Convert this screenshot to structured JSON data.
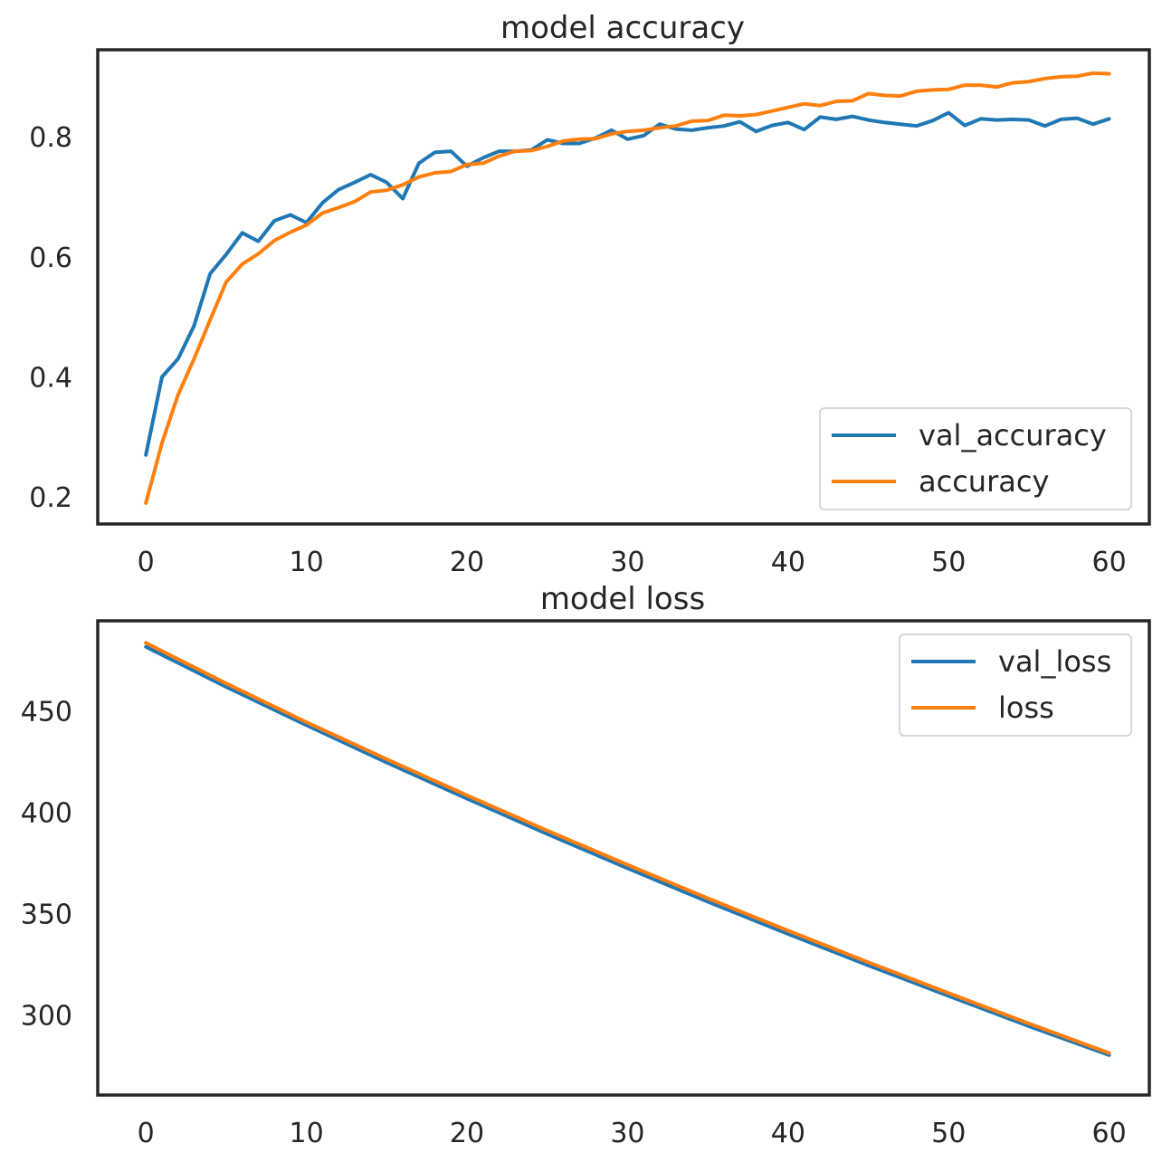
{
  "colors": {
    "val": "#1f77b4",
    "train": "#ff7f0e",
    "frame": "#262626",
    "text": "#262626"
  },
  "chart_data": [
    {
      "type": "line",
      "title": "model accuracy",
      "xlabel": "",
      "ylabel": "",
      "xlim": [
        -3,
        62.5
      ],
      "ylim": [
        0.155,
        0.945
      ],
      "xticks": [
        0,
        10,
        20,
        30,
        40,
        50,
        60
      ],
      "xtick_labels": [
        "0",
        "10",
        "20",
        "30",
        "40",
        "50",
        "60"
      ],
      "yticks": [
        0.2,
        0.4,
        0.6,
        0.8
      ],
      "ytick_labels": [
        "0.2",
        "0.4",
        "0.6",
        "0.8"
      ],
      "grid": false,
      "legend_position": "lower right",
      "series": [
        {
          "name": "val_accuracy",
          "color": "#1f77b4",
          "x": [
            0,
            1,
            2,
            3,
            4,
            5,
            6,
            7,
            8,
            9,
            10,
            11,
            12,
            13,
            14,
            15,
            16,
            17,
            18,
            19,
            20,
            21,
            22,
            23,
            24,
            25,
            26,
            27,
            28,
            29,
            30,
            31,
            32,
            33,
            34,
            35,
            36,
            37,
            38,
            39,
            40,
            41,
            42,
            43,
            44,
            45,
            46,
            47,
            48,
            49,
            50,
            51,
            52,
            53,
            54,
            55,
            56,
            57,
            58,
            59,
            60
          ],
          "values": [
            0.27,
            0.4,
            0.43,
            0.485,
            0.572,
            0.604,
            0.64,
            0.626,
            0.66,
            0.67,
            0.657,
            0.69,
            0.712,
            0.724,
            0.737,
            0.724,
            0.697,
            0.756,
            0.774,
            0.776,
            0.751,
            0.765,
            0.776,
            0.776,
            0.778,
            0.795,
            0.789,
            0.789,
            0.798,
            0.811,
            0.796,
            0.802,
            0.821,
            0.813,
            0.811,
            0.815,
            0.818,
            0.825,
            0.809,
            0.819,
            0.824,
            0.812,
            0.833,
            0.829,
            0.834,
            0.828,
            0.824,
            0.821,
            0.818,
            0.827,
            0.84,
            0.819,
            0.83,
            0.828,
            0.829,
            0.828,
            0.818,
            0.829,
            0.831,
            0.821,
            0.83
          ]
        },
        {
          "name": "accuracy",
          "color": "#ff7f0e",
          "x": [
            0,
            1,
            2,
            3,
            4,
            5,
            6,
            7,
            8,
            9,
            10,
            11,
            12,
            13,
            14,
            15,
            16,
            17,
            18,
            19,
            20,
            21,
            22,
            23,
            24,
            25,
            26,
            27,
            28,
            29,
            30,
            31,
            32,
            33,
            34,
            35,
            36,
            37,
            38,
            39,
            40,
            41,
            42,
            43,
            44,
            45,
            46,
            47,
            48,
            49,
            50,
            51,
            52,
            53,
            54,
            55,
            56,
            57,
            58,
            59,
            60
          ],
          "values": [
            0.19,
            0.29,
            0.37,
            0.43,
            0.495,
            0.558,
            0.588,
            0.605,
            0.627,
            0.641,
            0.653,
            0.673,
            0.682,
            0.692,
            0.708,
            0.711,
            0.72,
            0.733,
            0.74,
            0.742,
            0.754,
            0.756,
            0.768,
            0.776,
            0.777,
            0.784,
            0.793,
            0.796,
            0.797,
            0.805,
            0.809,
            0.811,
            0.815,
            0.818,
            0.826,
            0.827,
            0.836,
            0.835,
            0.837,
            0.843,
            0.849,
            0.855,
            0.852,
            0.859,
            0.86,
            0.872,
            0.869,
            0.868,
            0.876,
            0.878,
            0.879,
            0.886,
            0.886,
            0.883,
            0.89,
            0.892,
            0.897,
            0.9,
            0.901,
            0.906,
            0.905
          ]
        }
      ]
    },
    {
      "type": "line",
      "title": "model loss",
      "xlabel": "",
      "ylabel": "",
      "xlim": [
        -3,
        62.5
      ],
      "ylim": [
        260.5,
        494.5
      ],
      "xticks": [
        0,
        10,
        20,
        30,
        40,
        50,
        60
      ],
      "xtick_labels": [
        "0",
        "10",
        "20",
        "30",
        "40",
        "50",
        "60"
      ],
      "yticks": [
        300,
        350,
        400,
        450
      ],
      "ytick_labels": [
        "300",
        "350",
        "400",
        "450"
      ],
      "grid": false,
      "legend_position": "upper right",
      "series": [
        {
          "name": "val_loss",
          "color": "#1f77b4",
          "x": [
            0,
            5,
            10,
            15,
            20,
            25,
            30,
            35,
            40,
            45,
            50,
            55,
            60
          ],
          "values": [
            481.7,
            461.9,
            443.0,
            424.6,
            406.8,
            389.3,
            372.4,
            355.9,
            340.0,
            324.5,
            309.4,
            294.5,
            280.2
          ]
        },
        {
          "name": "loss",
          "color": "#ff7f0e",
          "x": [
            0,
            5,
            10,
            15,
            20,
            25,
            30,
            35,
            40,
            45,
            50,
            55,
            60
          ],
          "values": [
            483.6,
            463.6,
            444.5,
            426.2,
            408.4,
            391.0,
            374.1,
            357.6,
            341.6,
            326.0,
            310.8,
            295.8,
            281.2
          ]
        }
      ]
    }
  ]
}
